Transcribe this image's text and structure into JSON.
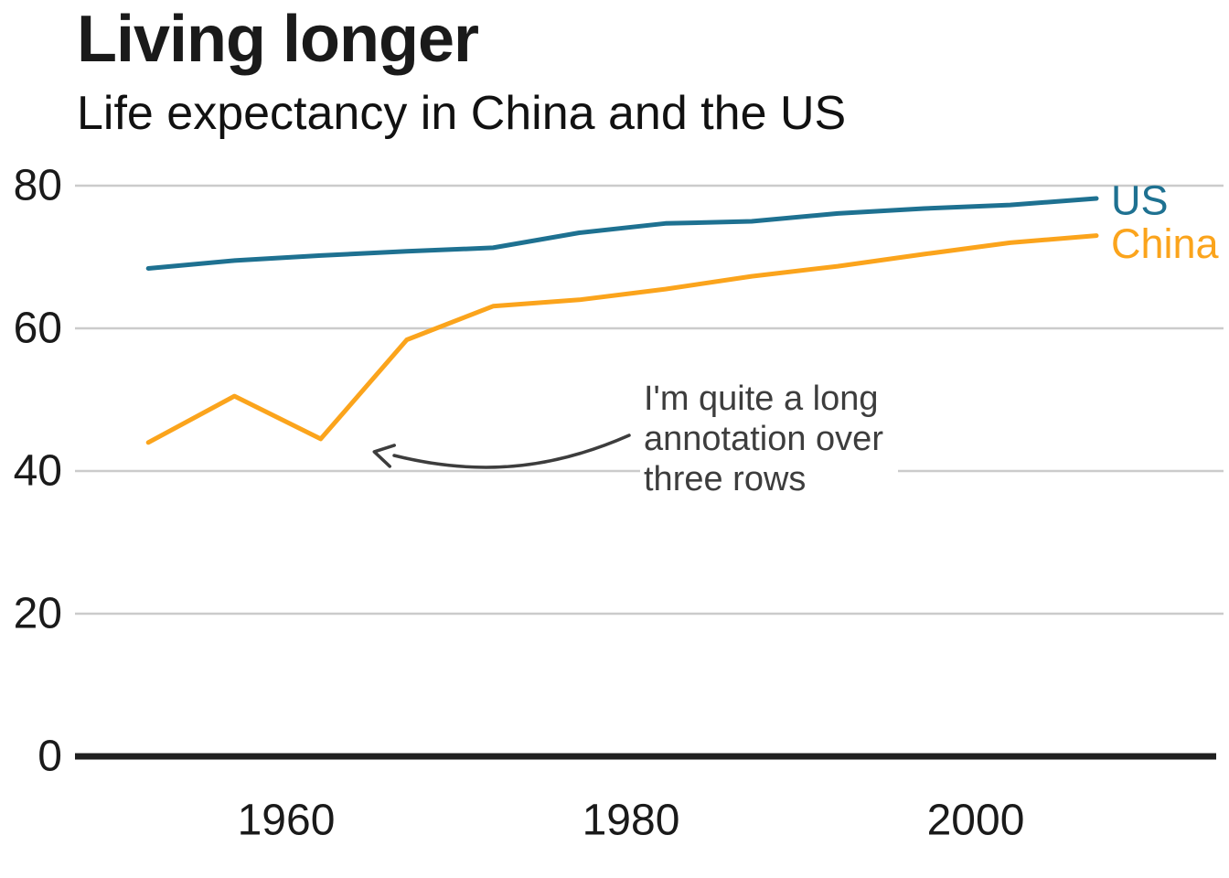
{
  "header": {
    "title": "Living longer",
    "subtitle": "Life expectancy in China and the US"
  },
  "chart_data": {
    "type": "line",
    "title": "Living longer",
    "subtitle": "Life expectancy in China and the US",
    "xlabel": "",
    "ylabel": "",
    "x": [
      1952,
      1957,
      1962,
      1967,
      1972,
      1977,
      1982,
      1987,
      1992,
      1997,
      2002,
      2007
    ],
    "series": [
      {
        "name": "US",
        "color": "#1e7191",
        "values": [
          68.4,
          69.5,
          70.2,
          70.8,
          71.3,
          73.4,
          74.7,
          75.0,
          76.1,
          76.8,
          77.3,
          78.2
        ]
      },
      {
        "name": "China",
        "color": "#fba41c",
        "values": [
          44.0,
          50.5,
          44.5,
          58.4,
          63.1,
          64.0,
          65.5,
          67.3,
          68.7,
          70.4,
          72.0,
          73.0
        ]
      }
    ],
    "yticks": [
      0,
      20,
      40,
      60,
      80
    ],
    "xticks": [
      1960,
      1980,
      2000
    ],
    "ylim": [
      0,
      85
    ],
    "xlim": [
      1949,
      2015
    ],
    "grid": "horizontal-gridlines-only",
    "legend": "direct-labels-at-line-ends",
    "annotation": {
      "text": "I'm quite a long\nannotation over\nthree rows",
      "target": {
        "year": 1965,
        "value": 42.7
      }
    },
    "colors": {
      "us": "#1e7191",
      "china": "#fba41c",
      "gridline": "#cbcbcb",
      "axis": "#202020",
      "tick_labels": "#1a1a1a",
      "annotation": "#3d3d3d"
    }
  }
}
